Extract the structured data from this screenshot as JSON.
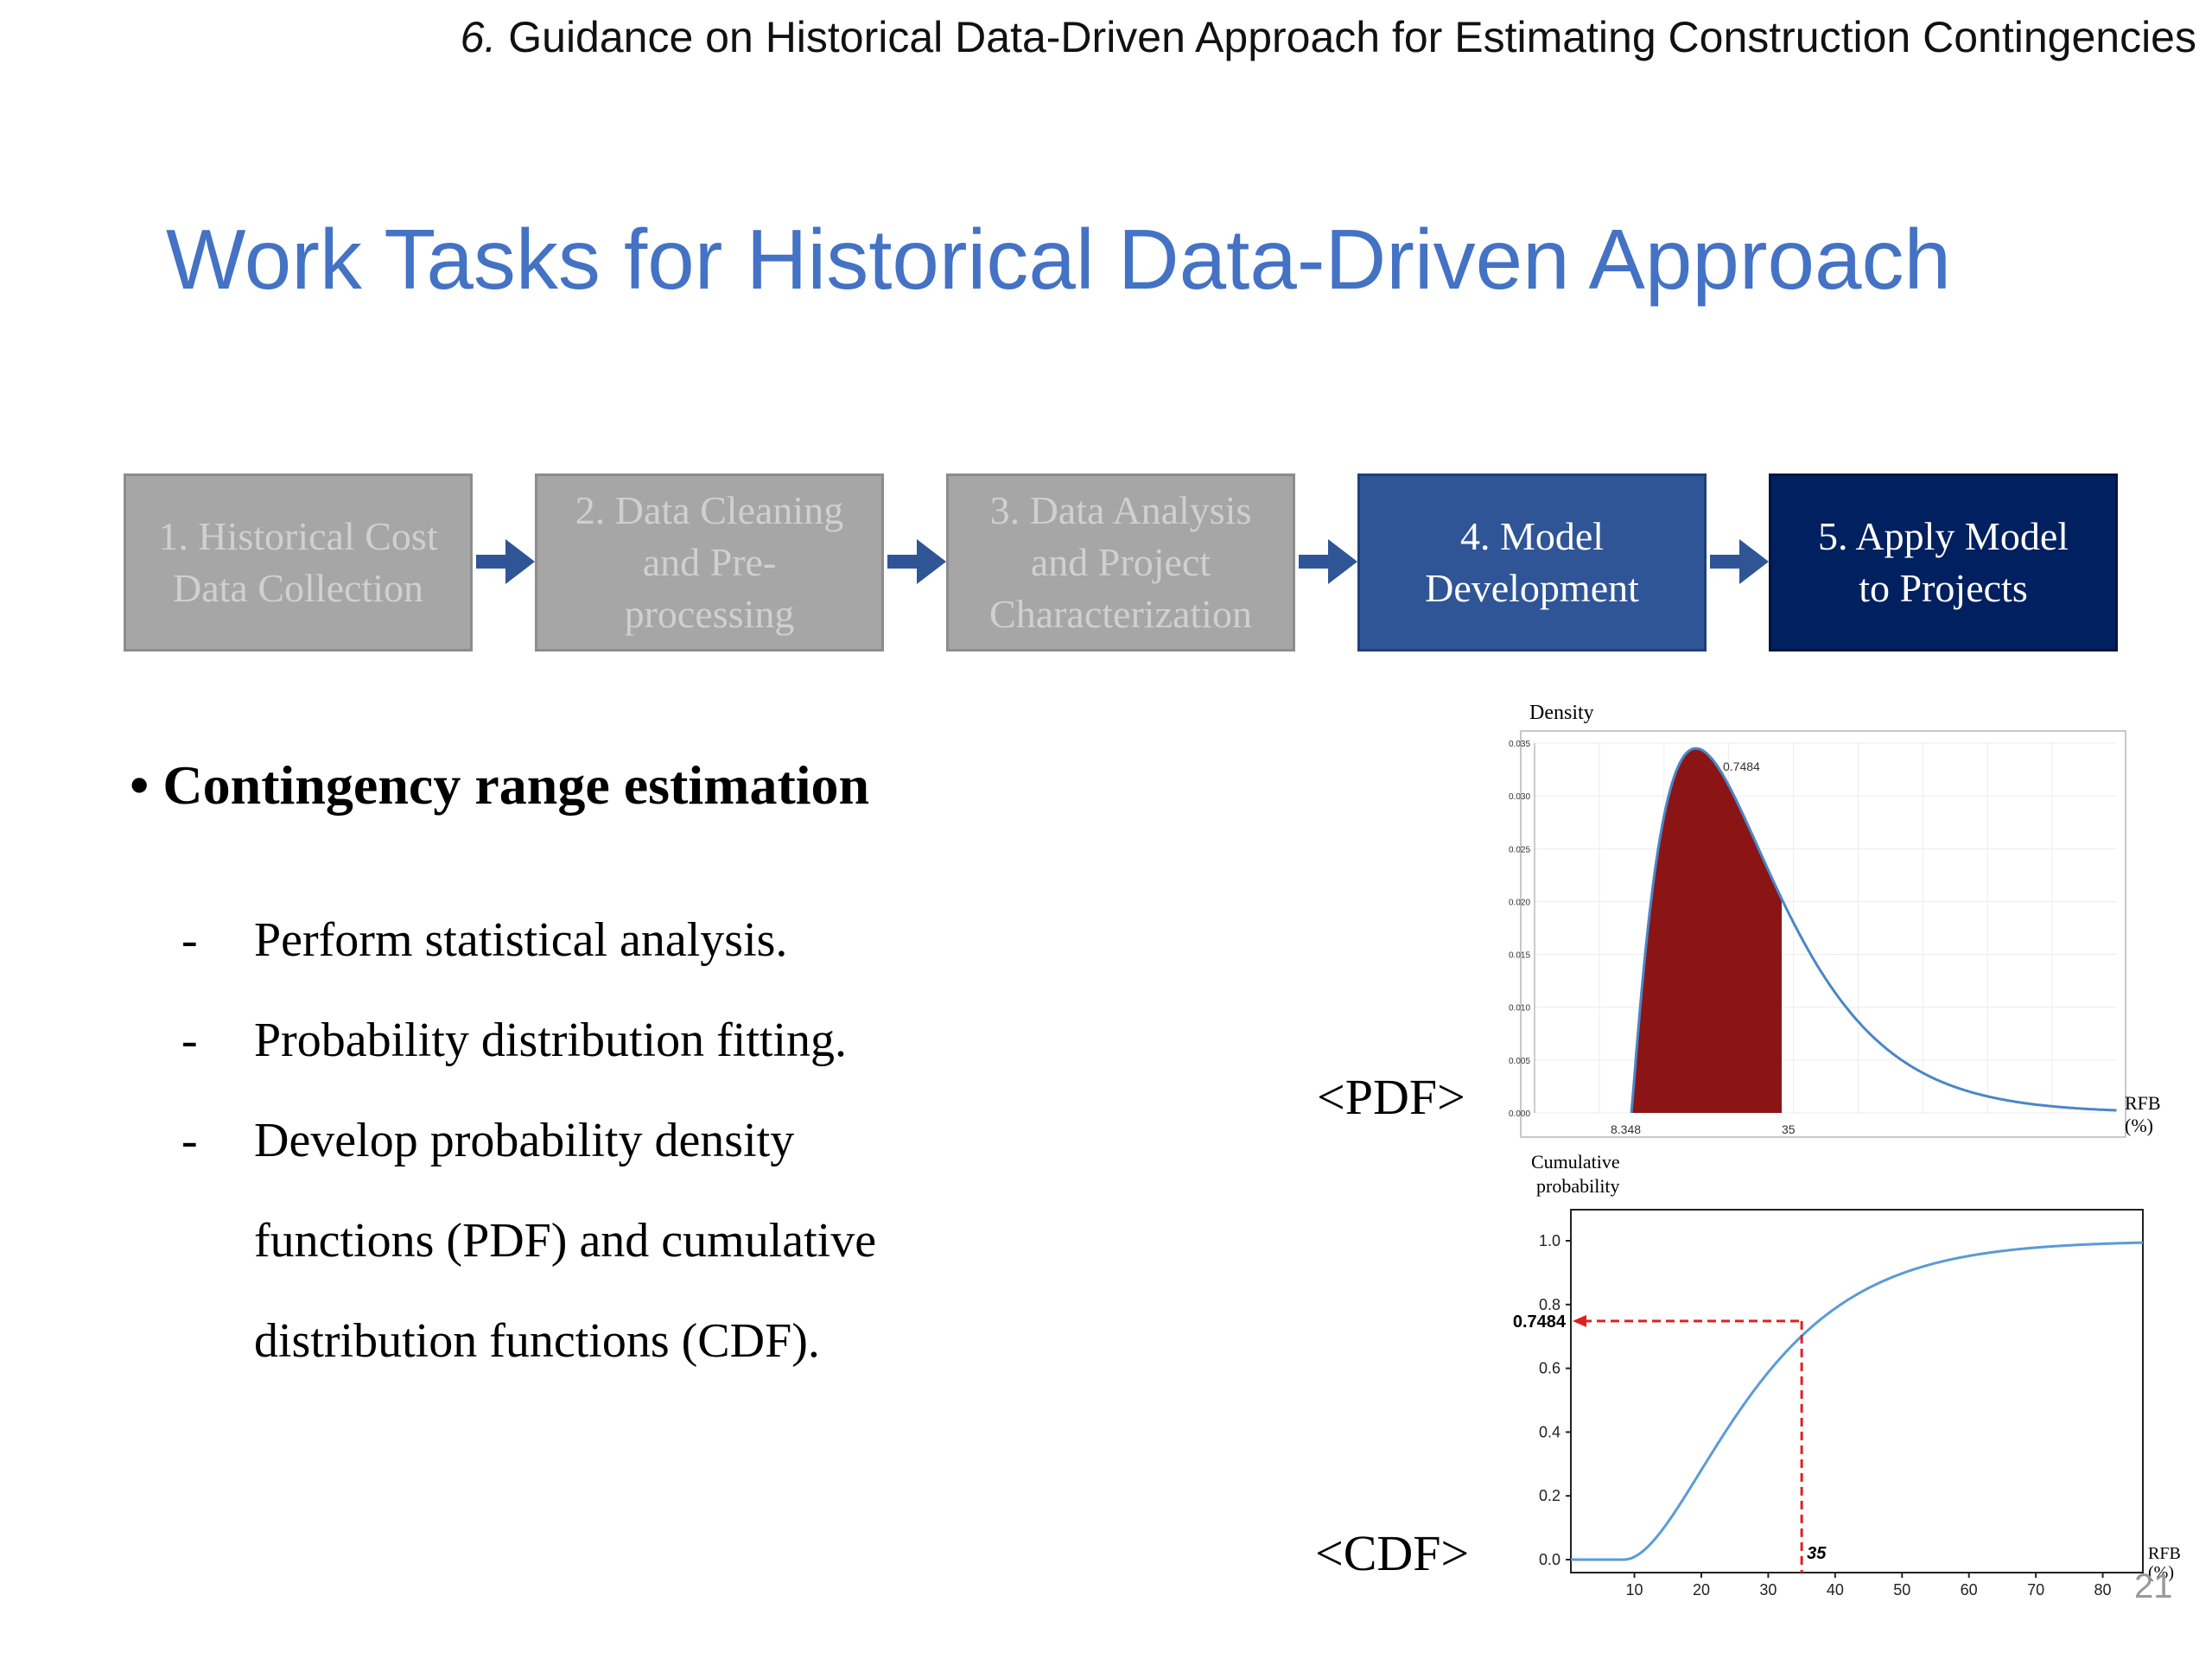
{
  "header": {
    "section_number": "6.",
    "text": " Guidance on Historical Data-Driven Approach for Estimating Construction Contingencies"
  },
  "title": "Work Tasks for Historical Data-Driven Approach",
  "steps": [
    {
      "line1": "1. Historical Cost",
      "line2": "Data Collection",
      "line3": "",
      "state": "past",
      "color": "#a6a6a6"
    },
    {
      "line1": "2. Data Cleaning",
      "line2": "and Pre-",
      "line3": "processing",
      "state": "past",
      "color": "#a6a6a6"
    },
    {
      "line1": "3. Data Analysis",
      "line2": "and Project",
      "line3": "Characterization",
      "state": "past",
      "color": "#a6a6a6"
    },
    {
      "line1": "4. Model",
      "line2": "Development",
      "line3": "",
      "state": "current",
      "color": "#2f5597"
    },
    {
      "line1": "5. Apply Model",
      "line2": "to Projects",
      "line3": "",
      "state": "current",
      "color": "#002060"
    }
  ],
  "arrow_color": "#2f5597",
  "bullet": {
    "heading": "Contingency range estimation",
    "items": [
      "Perform statistical analysis.",
      "Probability distribution fitting.",
      "Develop probability density",
      "functions (PDF) and cumulative",
      "distribution functions (CDF)."
    ]
  },
  "pdf_chart": {
    "tag": "<PDF>",
    "ylabel": "Density",
    "xlabel_line1": "RFB",
    "xlabel_line2": "(%)",
    "annotation": "0.7484",
    "x_ticks": [
      "8.348",
      "35"
    ],
    "y_ticks": [
      "0.000",
      "0.005",
      "0.010",
      "0.015",
      "0.020",
      "0.025",
      "0.030",
      "0.035"
    ],
    "fill_color": "#8b1515",
    "line_color": "#4a86c8"
  },
  "cdf_chart": {
    "tag": "<CDF>",
    "ylabel_line1": "Cumulative",
    "ylabel_line2": "probability",
    "xlabel_line1": "RFB",
    "xlabel_line2": "(%)",
    "marker_y": "0.7484",
    "marker_x": "35",
    "x_ticks": [
      "10",
      "20",
      "30",
      "40",
      "50",
      "60",
      "70",
      "80"
    ],
    "y_ticks": [
      "0.0",
      "0.2",
      "0.4",
      "0.6",
      "0.8",
      "1.0"
    ],
    "line_color": "#5b9bd5",
    "marker_color": "#e02020"
  },
  "page_number": "21"
}
